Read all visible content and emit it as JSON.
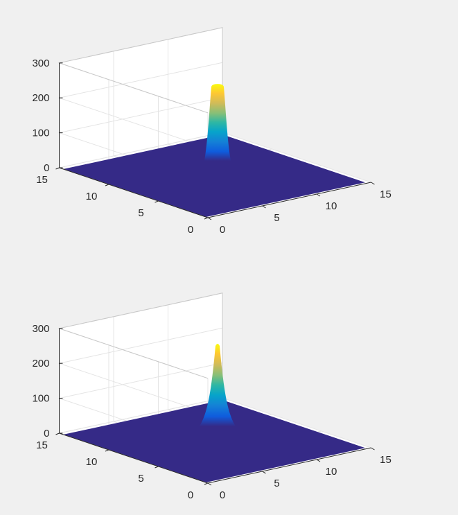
{
  "chart_data": [
    {
      "type": "surface",
      "peak_shape": "flat-topped (saturated) gaussian",
      "xlim": [
        0,
        15
      ],
      "ylim": [
        0,
        15
      ],
      "zlim": [
        0,
        300
      ],
      "xticks": [
        "0",
        "5",
        "10",
        "15"
      ],
      "yticks": [
        "0",
        "5",
        "10",
        "15"
      ],
      "zticks": [
        "0",
        "100",
        "200",
        "300"
      ],
      "peak_center": [
        10,
        10
      ],
      "peak_height": 220,
      "floor_value": 0,
      "colormap": "parula",
      "grid": true
    },
    {
      "type": "surface",
      "peak_shape": "gaussian",
      "xlim": [
        0,
        15
      ],
      "ylim": [
        0,
        15
      ],
      "zlim": [
        0,
        300
      ],
      "xticks": [
        "0",
        "5",
        "10",
        "15"
      ],
      "yticks": [
        "0",
        "5",
        "10",
        "15"
      ],
      "zticks": [
        "0",
        "100",
        "200",
        "300"
      ],
      "peak_center": [
        10,
        10
      ],
      "peak_height": 240,
      "floor_value": 0,
      "colormap": "parula",
      "grid": true
    }
  ],
  "colors": {
    "background": "#f0f0f0",
    "pane": "#ffffff",
    "floor": "#352a87",
    "colormap_stops": [
      "#352a87",
      "#0f5cdd",
      "#1481d6",
      "#06a4ca",
      "#2eb7a4",
      "#87bf77",
      "#d1bb59",
      "#fec832",
      "#f9fb0e"
    ]
  }
}
